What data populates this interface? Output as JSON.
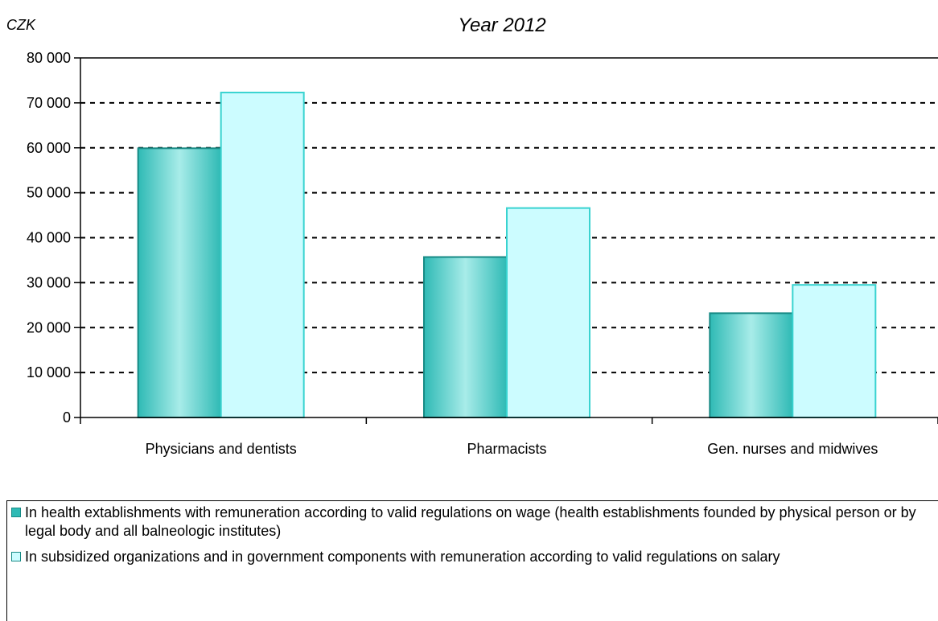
{
  "chart_data": {
    "type": "bar",
    "title": "Year 2012",
    "unit_label": "CZK",
    "categories": [
      "Physicians and dentists",
      "Pharmacists",
      "Gen. nurses and midwives"
    ],
    "series": [
      {
        "name": "In health extablishments with remuneration according to valid regulations on wage (health establishments founded by physical person or by legal body and all balneologic institutes)",
        "values": [
          59900,
          35700,
          23200
        ],
        "color": "#5fd6d1"
      },
      {
        "name": "In subsidized organizations and in government components with remuneration according to valid regulations on salary",
        "values": [
          72300,
          46600,
          29500
        ],
        "color": "#ccfcff"
      }
    ],
    "ylim": [
      0,
      80000
    ],
    "yticks": [
      "0",
      "10 000",
      "20 000",
      "30 000",
      "40 000",
      "50 000",
      "60 000",
      "70 000",
      "80 000"
    ],
    "grid": "dashed horizontal",
    "legend_position": "bottom"
  }
}
